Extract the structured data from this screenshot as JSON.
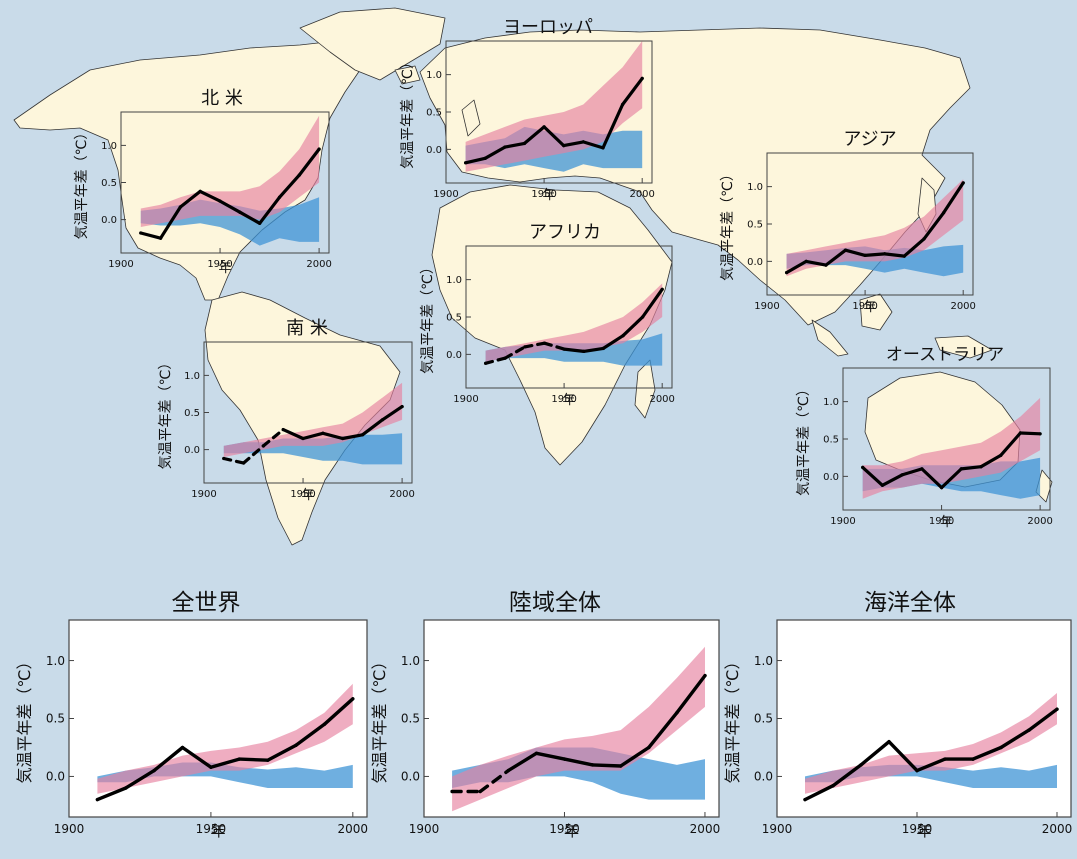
{
  "colors": {
    "background": "#c9dbe9",
    "land": "#fdf6dc",
    "coastline": "#333333",
    "model_natural_band": "#3f94d6",
    "model_all_forcings_band": "#e6819f",
    "observed_line": "#000000"
  },
  "chart_data": [
    {
      "type": "area",
      "region": "north-america",
      "title": "北 米",
      "xlabel": "年",
      "ylabel": "気温平年差（℃）",
      "xticks": [
        "1900",
        "1950",
        "2000"
      ],
      "yticks": [
        "0.0",
        "0.5",
        "1.0"
      ],
      "xlim": [
        1900,
        2005
      ],
      "ylim": [
        -0.45,
        1.45
      ],
      "grid": false,
      "x": [
        1910,
        1920,
        1930,
        1940,
        1950,
        1960,
        1970,
        1980,
        1990,
        2000
      ],
      "series": [
        {
          "role": "natural_forcings_band",
          "lower": [
            -0.05,
            -0.08,
            -0.08,
            -0.05,
            -0.1,
            -0.2,
            -0.35,
            -0.25,
            -0.3,
            -0.3
          ],
          "upper": [
            0.12,
            0.15,
            0.2,
            0.27,
            0.22,
            0.18,
            0.12,
            0.15,
            0.2,
            0.3
          ]
        },
        {
          "role": "all_forcings_band",
          "lower": [
            -0.1,
            -0.05,
            0.0,
            0.05,
            0.05,
            0.05,
            0.0,
            0.1,
            0.3,
            0.5
          ],
          "upper": [
            0.15,
            0.2,
            0.3,
            0.38,
            0.38,
            0.38,
            0.45,
            0.65,
            0.95,
            1.4
          ]
        },
        {
          "role": "observed",
          "values": [
            -0.18,
            -0.25,
            0.17,
            0.38,
            0.25,
            0.1,
            -0.05,
            0.3,
            0.6,
            0.95
          ],
          "dashed_segments": []
        }
      ]
    },
    {
      "type": "area",
      "region": "europe",
      "title": "ヨーロッパ",
      "xlabel": "年",
      "ylabel": "気温平年差（℃）",
      "xticks": [
        "1900",
        "1950",
        "2000"
      ],
      "yticks": [
        "0.0",
        "0.5",
        "1.0"
      ],
      "xlim": [
        1900,
        2005
      ],
      "ylim": [
        -0.45,
        1.45
      ],
      "grid": false,
      "x": [
        1910,
        1920,
        1930,
        1940,
        1950,
        1960,
        1970,
        1980,
        1990,
        2000
      ],
      "series": [
        {
          "role": "natural_forcings_band",
          "lower": [
            -0.2,
            -0.2,
            -0.25,
            -0.2,
            -0.25,
            -0.3,
            -0.2,
            -0.25,
            -0.25,
            -0.25
          ],
          "upper": [
            0.05,
            0.1,
            0.15,
            0.3,
            0.25,
            0.2,
            0.25,
            0.2,
            0.25,
            0.25
          ]
        },
        {
          "role": "all_forcings_band",
          "lower": [
            -0.3,
            -0.25,
            -0.2,
            -0.15,
            -0.1,
            -0.05,
            0.0,
            0.1,
            0.35,
            0.55
          ],
          "upper": [
            0.1,
            0.2,
            0.3,
            0.4,
            0.45,
            0.5,
            0.6,
            0.85,
            1.1,
            1.45
          ]
        },
        {
          "role": "observed",
          "values": [
            -0.18,
            -0.12,
            0.03,
            0.08,
            0.3,
            0.05,
            0.1,
            0.02,
            0.6,
            0.95
          ],
          "dashed_segments": []
        }
      ]
    },
    {
      "type": "area",
      "region": "asia",
      "title": "アジア",
      "xlabel": "年",
      "ylabel": "気温平年差（℃）",
      "xticks": [
        "1900",
        "1950",
        "2000"
      ],
      "yticks": [
        "0.0",
        "0.5",
        "1.0"
      ],
      "xlim": [
        1900,
        2005
      ],
      "ylim": [
        -0.45,
        1.45
      ],
      "grid": false,
      "x": [
        1910,
        1920,
        1930,
        1940,
        1950,
        1960,
        1970,
        1980,
        1990,
        2000
      ],
      "series": [
        {
          "role": "natural_forcings_band",
          "lower": [
            -0.1,
            -0.05,
            -0.05,
            -0.05,
            -0.1,
            -0.15,
            -0.1,
            -0.15,
            -0.2,
            -0.15
          ],
          "upper": [
            0.1,
            0.12,
            0.15,
            0.18,
            0.2,
            0.15,
            0.18,
            0.15,
            0.2,
            0.22
          ]
        },
        {
          "role": "all_forcings_band",
          "lower": [
            -0.2,
            -0.1,
            -0.05,
            0.0,
            0.0,
            0.0,
            0.05,
            0.15,
            0.35,
            0.55
          ],
          "upper": [
            0.1,
            0.15,
            0.2,
            0.25,
            0.3,
            0.35,
            0.45,
            0.6,
            0.85,
            1.1
          ]
        },
        {
          "role": "observed",
          "values": [
            -0.15,
            0.0,
            -0.05,
            0.15,
            0.08,
            0.1,
            0.07,
            0.3,
            0.65,
            1.05
          ],
          "dashed_segments": []
        }
      ]
    },
    {
      "type": "area",
      "region": "south-america",
      "title": "南 米",
      "xlabel": "年",
      "ylabel": "気温平年差（℃）",
      "xticks": [
        "1900",
        "1950",
        "2000"
      ],
      "yticks": [
        "0.0",
        "0.5",
        "1.0"
      ],
      "xlim": [
        1900,
        2005
      ],
      "ylim": [
        -0.45,
        1.45
      ],
      "grid": false,
      "x": [
        1910,
        1920,
        1930,
        1940,
        1950,
        1960,
        1970,
        1980,
        1990,
        2000
      ],
      "series": [
        {
          "role": "natural_forcings_band",
          "lower": [
            -0.05,
            -0.05,
            -0.05,
            -0.05,
            -0.1,
            -0.15,
            -0.15,
            -0.2,
            -0.2,
            -0.2
          ],
          "upper": [
            0.05,
            0.1,
            0.1,
            0.15,
            0.15,
            0.15,
            0.18,
            0.2,
            0.2,
            0.22
          ]
        },
        {
          "role": "all_forcings_band",
          "lower": [
            -0.1,
            -0.05,
            0.0,
            0.05,
            0.05,
            0.05,
            0.1,
            0.2,
            0.3,
            0.4
          ],
          "upper": [
            0.05,
            0.1,
            0.15,
            0.2,
            0.25,
            0.3,
            0.35,
            0.5,
            0.7,
            0.9
          ]
        },
        {
          "role": "observed",
          "values": [
            -0.12,
            -0.18,
            0.05,
            0.27,
            0.15,
            0.22,
            0.15,
            0.2,
            0.4,
            0.58
          ],
          "dashed_segments": [
            0,
            1,
            2
          ]
        }
      ]
    },
    {
      "type": "area",
      "region": "africa",
      "title": "アフリカ",
      "xlabel": "年",
      "ylabel": "気温平年差（℃）",
      "xticks": [
        "1900",
        "1950",
        "2000"
      ],
      "yticks": [
        "0.0",
        "0.5",
        "1.0"
      ],
      "xlim": [
        1900,
        2005
      ],
      "ylim": [
        -0.45,
        1.45
      ],
      "grid": false,
      "x": [
        1910,
        1920,
        1930,
        1940,
        1950,
        1960,
        1970,
        1980,
        1990,
        2000
      ],
      "series": [
        {
          "role": "natural_forcings_band",
          "lower": [
            -0.1,
            -0.05,
            -0.05,
            -0.05,
            -0.1,
            -0.1,
            -0.1,
            -0.15,
            -0.15,
            -0.15
          ],
          "upper": [
            0.05,
            0.1,
            0.12,
            0.15,
            0.15,
            0.15,
            0.15,
            0.18,
            0.2,
            0.28
          ]
        },
        {
          "role": "all_forcings_band",
          "lower": [
            -0.1,
            -0.05,
            0.0,
            0.05,
            0.05,
            0.05,
            0.1,
            0.15,
            0.3,
            0.5
          ],
          "upper": [
            0.05,
            0.1,
            0.15,
            0.2,
            0.25,
            0.3,
            0.4,
            0.5,
            0.7,
            0.95
          ]
        },
        {
          "role": "observed",
          "values": [
            -0.12,
            -0.05,
            0.1,
            0.15,
            0.07,
            0.04,
            0.08,
            0.25,
            0.5,
            0.87
          ],
          "dashed_segments": [
            0,
            1,
            2,
            3
          ]
        }
      ]
    },
    {
      "type": "area",
      "region": "australia",
      "title": "オーストラリア",
      "xlabel": "年",
      "ylabel": "気温平年差（℃）",
      "xticks": [
        "1900",
        "1950",
        "2000"
      ],
      "yticks": [
        "0.0",
        "0.5",
        "1.0"
      ],
      "xlim": [
        1900,
        2005
      ],
      "ylim": [
        -0.45,
        1.45
      ],
      "grid": false,
      "x": [
        1910,
        1920,
        1930,
        1940,
        1950,
        1960,
        1970,
        1980,
        1990,
        2000
      ],
      "series": [
        {
          "role": "natural_forcings_band",
          "lower": [
            -0.2,
            -0.15,
            -0.15,
            -0.1,
            -0.15,
            -0.2,
            -0.2,
            -0.25,
            -0.3,
            -0.25
          ],
          "upper": [
            0.1,
            0.1,
            0.1,
            0.15,
            0.15,
            0.15,
            0.15,
            0.2,
            0.2,
            0.25
          ]
        },
        {
          "role": "all_forcings_band",
          "lower": [
            -0.3,
            -0.2,
            -0.15,
            -0.1,
            -0.1,
            -0.05,
            0.0,
            0.05,
            0.2,
            0.35
          ],
          "upper": [
            0.15,
            0.15,
            0.2,
            0.3,
            0.35,
            0.4,
            0.45,
            0.6,
            0.8,
            1.05
          ]
        },
        {
          "role": "observed",
          "values": [
            0.12,
            -0.12,
            0.02,
            0.1,
            -0.15,
            0.1,
            0.13,
            0.28,
            0.58,
            0.57
          ],
          "dashed_segments": []
        }
      ]
    },
    {
      "type": "area",
      "region": "global",
      "title": "全世界",
      "xlabel": "年",
      "ylabel": "気温平年差（℃）",
      "xticks": [
        "1900",
        "1950",
        "2000"
      ],
      "yticks": [
        "0.0",
        "0.5",
        "1.0"
      ],
      "xlim": [
        1900,
        2005
      ],
      "ylim": [
        -0.35,
        1.35
      ],
      "grid": false,
      "x": [
        1910,
        1920,
        1930,
        1940,
        1950,
        1960,
        1970,
        1980,
        1990,
        2000
      ],
      "series": [
        {
          "role": "natural_forcings_band",
          "lower": [
            -0.05,
            -0.05,
            0.0,
            0.0,
            0.0,
            -0.05,
            -0.1,
            -0.1,
            -0.1,
            -0.1
          ],
          "upper": [
            0.0,
            0.05,
            0.08,
            0.12,
            0.12,
            0.08,
            0.06,
            0.08,
            0.05,
            0.1
          ]
        },
        {
          "role": "all_forcings_band",
          "lower": [
            -0.15,
            -0.1,
            -0.05,
            0.0,
            0.05,
            0.05,
            0.1,
            0.2,
            0.3,
            0.45
          ],
          "upper": [
            -0.02,
            0.05,
            0.1,
            0.18,
            0.22,
            0.25,
            0.3,
            0.4,
            0.55,
            0.8
          ]
        },
        {
          "role": "observed",
          "values": [
            -0.2,
            -0.1,
            0.05,
            0.25,
            0.08,
            0.15,
            0.14,
            0.27,
            0.45,
            0.67
          ],
          "dashed_segments": []
        }
      ]
    },
    {
      "type": "area",
      "region": "global-land",
      "title": "陸域全体",
      "xlabel": "年",
      "ylabel": "気温平年差（℃）",
      "xticks": [
        "1900",
        "1950",
        "2000"
      ],
      "yticks": [
        "0.0",
        "0.5",
        "1.0"
      ],
      "xlim": [
        1900,
        2005
      ],
      "ylim": [
        -0.35,
        1.35
      ],
      "grid": false,
      "x": [
        1910,
        1920,
        1930,
        1940,
        1950,
        1960,
        1970,
        1980,
        1990,
        2000
      ],
      "series": [
        {
          "role": "natural_forcings_band",
          "lower": [
            -0.1,
            -0.05,
            -0.05,
            0.0,
            0.0,
            -0.05,
            -0.15,
            -0.2,
            -0.2,
            -0.2
          ],
          "upper": [
            0.05,
            0.1,
            0.15,
            0.25,
            0.25,
            0.25,
            0.2,
            0.15,
            0.1,
            0.15
          ]
        },
        {
          "role": "all_forcings_band",
          "lower": [
            -0.3,
            -0.2,
            -0.1,
            0.0,
            0.05,
            0.05,
            0.05,
            0.2,
            0.4,
            0.6
          ],
          "upper": [
            0.0,
            0.1,
            0.18,
            0.25,
            0.32,
            0.35,
            0.4,
            0.6,
            0.85,
            1.12
          ]
        },
        {
          "role": "observed",
          "values": [
            -0.13,
            -0.13,
            0.05,
            0.2,
            0.15,
            0.1,
            0.09,
            0.25,
            0.55,
            0.87
          ],
          "dashed_segments": [
            0,
            1
          ]
        }
      ]
    },
    {
      "type": "area",
      "region": "global-ocean",
      "title": "海洋全体",
      "xlabel": "年",
      "ylabel": "気温平年差（℃）",
      "xticks": [
        "1900",
        "1950",
        "2000"
      ],
      "yticks": [
        "0.0",
        "0.5",
        "1.0"
      ],
      "xlim": [
        1900,
        2005
      ],
      "ylim": [
        -0.35,
        1.35
      ],
      "grid": false,
      "x": [
        1910,
        1920,
        1930,
        1940,
        1950,
        1960,
        1970,
        1980,
        1990,
        2000
      ],
      "series": [
        {
          "role": "natural_forcings_band",
          "lower": [
            -0.05,
            -0.05,
            0.0,
            0.0,
            0.0,
            -0.05,
            -0.1,
            -0.1,
            -0.1,
            -0.1
          ],
          "upper": [
            0.0,
            0.05,
            0.08,
            0.1,
            0.1,
            0.08,
            0.05,
            0.08,
            0.05,
            0.1
          ]
        },
        {
          "role": "all_forcings_band",
          "lower": [
            -0.15,
            -0.1,
            -0.05,
            0.0,
            0.05,
            0.05,
            0.1,
            0.2,
            0.3,
            0.45
          ],
          "upper": [
            -0.02,
            0.05,
            0.1,
            0.18,
            0.2,
            0.22,
            0.28,
            0.38,
            0.52,
            0.72
          ]
        },
        {
          "role": "observed",
          "values": [
            -0.2,
            -0.08,
            0.1,
            0.3,
            0.05,
            0.15,
            0.15,
            0.25,
            0.4,
            0.58
          ],
          "dashed_segments": []
        }
      ]
    }
  ]
}
